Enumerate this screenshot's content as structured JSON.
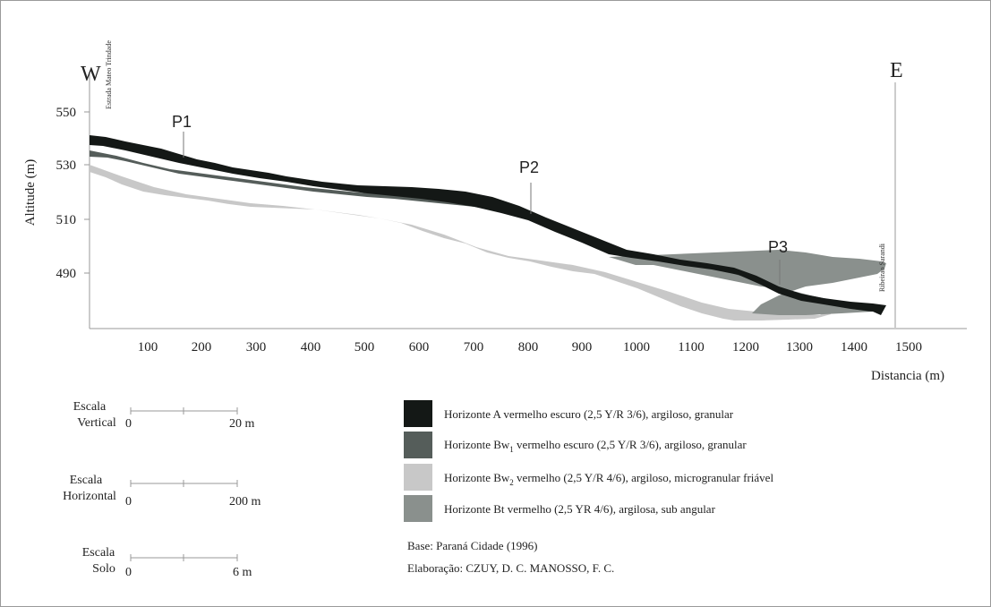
{
  "diagram": {
    "west_label": "W",
    "east_label": "E",
    "road_label": "Estrada Mateo Trindade",
    "stream_label": "Ribeirao Sarandi",
    "y_axis_label": "Altitude (m)",
    "x_axis_label": "Distancia (m)",
    "y_ticks": [
      "550",
      "530",
      "510",
      "490"
    ],
    "x_ticks": [
      "100",
      "200",
      "300",
      "400",
      "500",
      "600",
      "700",
      "800",
      "900",
      "1000",
      "1100",
      "1200",
      "1300",
      "1400",
      "1500"
    ],
    "profiles": [
      {
        "label": "P1",
        "distance_m": 175
      },
      {
        "label": "P2",
        "distance_m": 810
      },
      {
        "label": "P3",
        "distance_m": 1260
      }
    ]
  },
  "scales": [
    {
      "title_line1": "Escala",
      "title_line2": "Vertical",
      "start": "0",
      "end": "20 m"
    },
    {
      "title_line1": "Escala",
      "title_line2": "Horizontal",
      "start": "0",
      "end": "200 m"
    },
    {
      "title_line1": "Escala",
      "title_line2": "Solo",
      "start": "0",
      "end": "6 m"
    }
  ],
  "legend": [
    {
      "pre": "Horizonte A vermelho escuro (2,5 Y/R 3/6), argiloso, granular",
      "sub": "",
      "post": "",
      "color": "#141816"
    },
    {
      "pre": "Horizonte Bw",
      "sub": "1",
      "post": " vermelho escuro (2,5 Y/R 3/6), argiloso, granular",
      "color": "#555d5a"
    },
    {
      "pre": "Horizonte Bw",
      "sub": "2",
      "post": " vermelho (2,5 Y/R 4/6), argiloso, microgranular friável",
      "color": "#c8c8c8"
    },
    {
      "pre": "Horizonte Bt vermelho (2,5 YR 4/6), argilosa, sub angular",
      "sub": "",
      "post": "",
      "color": "#8a908d"
    }
  ],
  "credits": {
    "base": "Base: Paraná Cidade (1996)",
    "author": "Elaboração: CZUY, D. C. MANOSSO, F. C."
  }
}
